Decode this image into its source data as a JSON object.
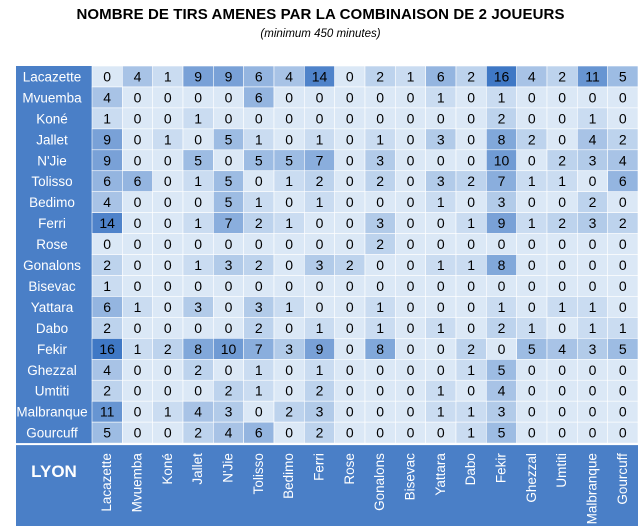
{
  "title": "NOMBRE DE TIRS AMENES PAR LA COMBINAISON DE 2 JOUEURS",
  "subtitle": "(minimum 450 minutes)",
  "corner_label": "LYON",
  "colors": {
    "header_bg": "#4a7fc7",
    "header_text": "#ffffff",
    "cell_low": "#dbe8f6",
    "cell_high": "#3f78c5",
    "cell_text": "#000000",
    "grid_line": "#ffffff"
  },
  "chart_data": {
    "type": "heatmap",
    "title": "NOMBRE DE TIRS AMENES PAR LA COMBINAISON DE 2 JOUEURS",
    "subtitle": "(minimum 450 minutes)",
    "rows": [
      "Lacazette",
      "Mvuemba",
      "Koné",
      "Jallet",
      "N'Jie",
      "Tolisso",
      "Bedimo",
      "Ferri",
      "Rose",
      "Gonalons",
      "Bisevac",
      "Yattara",
      "Dabo",
      "Fekir",
      "Ghezzal",
      "Umtiti",
      "Malbranque",
      "Gourcuff"
    ],
    "columns": [
      "Lacazette",
      "Mvuemba",
      "Koné",
      "Jallet",
      "N'Jie",
      "Tolisso",
      "Bedimo",
      "Ferri",
      "Rose",
      "Gonalons",
      "Bisevac",
      "Yattara",
      "Dabo",
      "Fekir",
      "Ghezzal",
      "Umtiti",
      "Malbranque",
      "Gourcuff"
    ],
    "values": [
      [
        0,
        4,
        1,
        9,
        9,
        6,
        4,
        14,
        0,
        2,
        1,
        6,
        2,
        16,
        4,
        2,
        11,
        5
      ],
      [
        4,
        0,
        0,
        0,
        0,
        6,
        0,
        0,
        0,
        0,
        0,
        1,
        0,
        1,
        0,
        0,
        0,
        0
      ],
      [
        1,
        0,
        0,
        1,
        0,
        0,
        0,
        0,
        0,
        0,
        0,
        0,
        0,
        2,
        0,
        0,
        1,
        0
      ],
      [
        9,
        0,
        1,
        0,
        5,
        1,
        0,
        1,
        0,
        1,
        0,
        3,
        0,
        8,
        2,
        0,
        4,
        2
      ],
      [
        9,
        0,
        0,
        5,
        0,
        5,
        5,
        7,
        0,
        3,
        0,
        0,
        0,
        10,
        0,
        2,
        3,
        4
      ],
      [
        6,
        6,
        0,
        1,
        5,
        0,
        1,
        2,
        0,
        2,
        0,
        3,
        2,
        7,
        1,
        1,
        0,
        6
      ],
      [
        4,
        0,
        0,
        0,
        5,
        1,
        0,
        1,
        0,
        0,
        0,
        1,
        0,
        3,
        0,
        0,
        2,
        0
      ],
      [
        14,
        0,
        0,
        1,
        7,
        2,
        1,
        0,
        0,
        3,
        0,
        0,
        1,
        9,
        1,
        2,
        3,
        2
      ],
      [
        0,
        0,
        0,
        0,
        0,
        0,
        0,
        0,
        0,
        2,
        0,
        0,
        0,
        0,
        0,
        0,
        0,
        0
      ],
      [
        2,
        0,
        0,
        1,
        3,
        2,
        0,
        3,
        2,
        0,
        0,
        1,
        1,
        8,
        0,
        0,
        0,
        0
      ],
      [
        1,
        0,
        0,
        0,
        0,
        0,
        0,
        0,
        0,
        0,
        0,
        0,
        0,
        0,
        0,
        0,
        0,
        0
      ],
      [
        6,
        1,
        0,
        3,
        0,
        3,
        1,
        0,
        0,
        1,
        0,
        0,
        0,
        1,
        0,
        1,
        1,
        0
      ],
      [
        2,
        0,
        0,
        0,
        0,
        2,
        0,
        1,
        0,
        1,
        0,
        1,
        0,
        2,
        1,
        0,
        1,
        1
      ],
      [
        16,
        1,
        2,
        8,
        10,
        7,
        3,
        9,
        0,
        8,
        0,
        0,
        2,
        0,
        5,
        4,
        3,
        5
      ],
      [
        4,
        0,
        0,
        2,
        0,
        1,
        0,
        1,
        0,
        0,
        0,
        0,
        1,
        5,
        0,
        0,
        0,
        0
      ],
      [
        2,
        0,
        0,
        0,
        2,
        1,
        0,
        2,
        0,
        0,
        0,
        1,
        0,
        4,
        0,
        0,
        0,
        0
      ],
      [
        11,
        0,
        1,
        4,
        3,
        0,
        2,
        3,
        0,
        0,
        0,
        1,
        1,
        3,
        0,
        0,
        0,
        0
      ],
      [
        5,
        0,
        0,
        2,
        4,
        6,
        0,
        2,
        0,
        0,
        0,
        0,
        1,
        5,
        0,
        0,
        0,
        0
      ]
    ]
  }
}
